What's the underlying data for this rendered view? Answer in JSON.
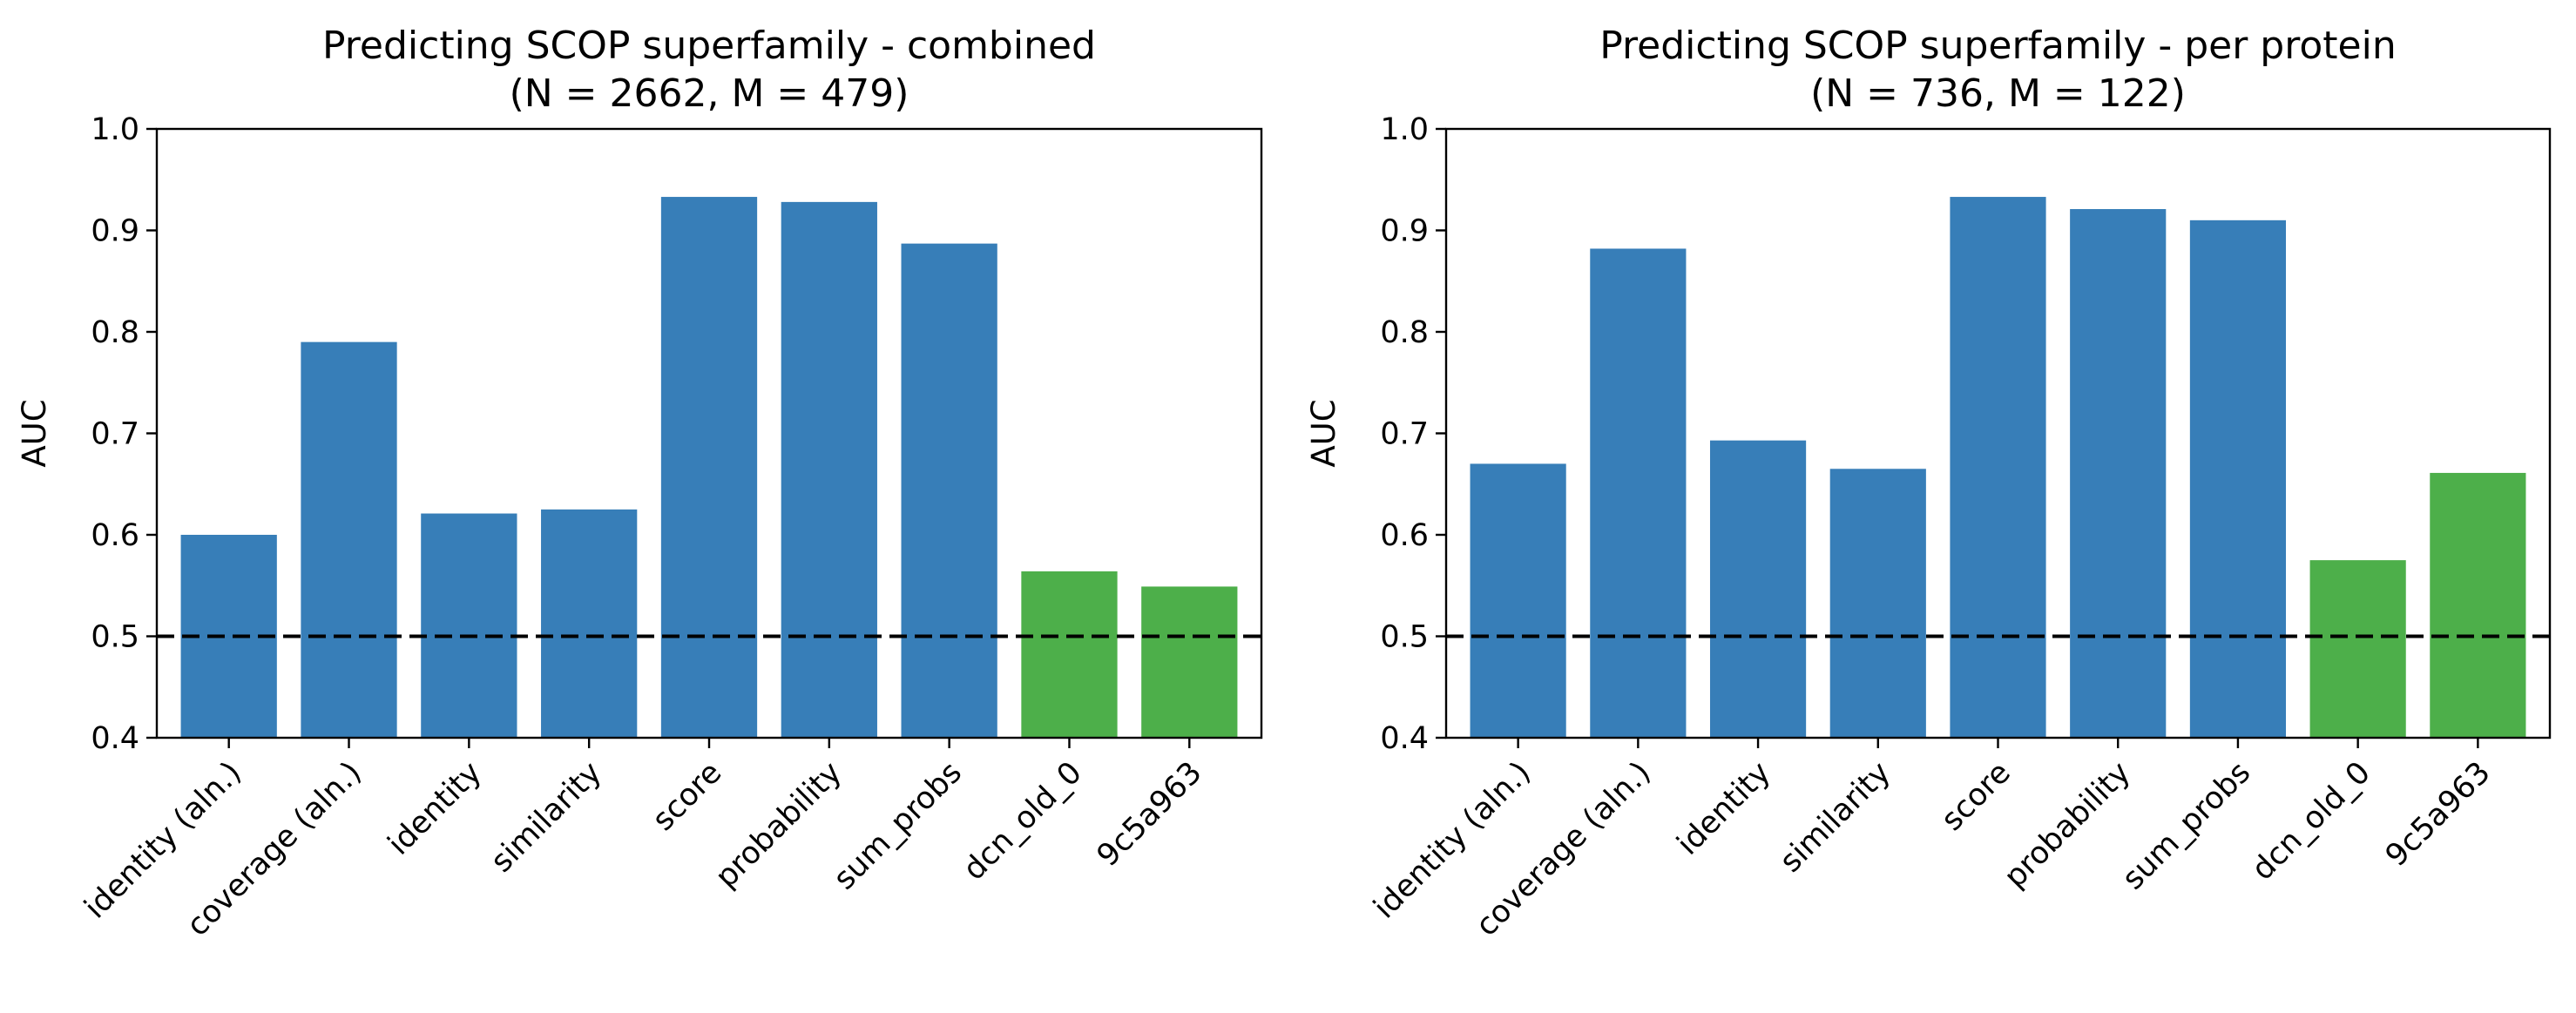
{
  "chart_data": [
    {
      "type": "bar",
      "title": "Predicting SCOP superfamily - combined",
      "subtitle": "(N = 2662, M = 479)",
      "xlabel": "",
      "ylabel": "AUC",
      "ylim": [
        0.4,
        1.0
      ],
      "yticks": [
        "0.4",
        "0.5",
        "0.6",
        "0.7",
        "0.8",
        "0.9",
        "1.0"
      ],
      "categories": [
        "identity (aln.)",
        "coverage (aln.)",
        "identity",
        "similarity",
        "score",
        "probability",
        "sum_probs",
        "dcn_old_0",
        "9c5a963"
      ],
      "values": [
        0.6,
        0.79,
        0.621,
        0.625,
        0.933,
        0.928,
        0.887,
        0.564,
        0.549
      ],
      "bar_colors": [
        "#377eb8",
        "#377eb8",
        "#377eb8",
        "#377eb8",
        "#377eb8",
        "#377eb8",
        "#377eb8",
        "#4daf4a",
        "#4daf4a"
      ],
      "reference_line": 0.5,
      "grid": false
    },
    {
      "type": "bar",
      "title": "Predicting SCOP superfamily - per protein",
      "subtitle": "(N = 736, M = 122)",
      "xlabel": "",
      "ylabel": "AUC",
      "ylim": [
        0.4,
        1.0
      ],
      "yticks": [
        "0.4",
        "0.5",
        "0.6",
        "0.7",
        "0.8",
        "0.9",
        "1.0"
      ],
      "categories": [
        "identity (aln.)",
        "coverage (aln.)",
        "identity",
        "similarity",
        "score",
        "probability",
        "sum_probs",
        "dcn_old_0",
        "9c5a963"
      ],
      "values": [
        0.67,
        0.882,
        0.693,
        0.665,
        0.933,
        0.921,
        0.91,
        0.575,
        0.661
      ],
      "bar_colors": [
        "#377eb8",
        "#377eb8",
        "#377eb8",
        "#377eb8",
        "#377eb8",
        "#377eb8",
        "#377eb8",
        "#4daf4a",
        "#4daf4a"
      ],
      "reference_line": 0.5,
      "grid": false
    }
  ]
}
